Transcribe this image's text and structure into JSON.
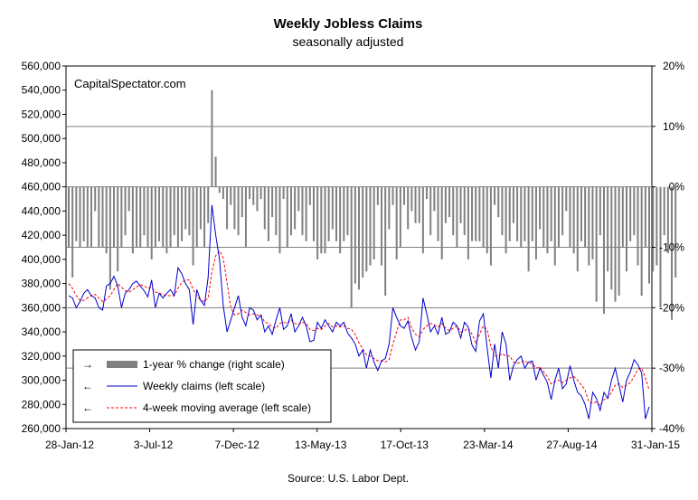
{
  "chart_data": {
    "type": "bar+line",
    "title": "Weekly Jobless Claims",
    "subtitle": "seasonally adjusted",
    "watermark": "CapitalSpectator.com",
    "source": "Source: U.S. Labor Dept.",
    "left_axis": {
      "ylim": [
        260000,
        560000
      ],
      "ticks": [
        "260,000",
        "280,000",
        "300,000",
        "320,000",
        "340,000",
        "360,000",
        "380,000",
        "400,000",
        "420,000",
        "440,000",
        "460,000",
        "480,000",
        "500,000",
        "520,000",
        "540,000",
        "560,000"
      ]
    },
    "right_axis": {
      "ylim": [
        -40,
        20
      ],
      "ticks": [
        "20%",
        "10%",
        "0%",
        "-10%",
        "-20%",
        "-30%",
        "-40%"
      ]
    },
    "x_axis": {
      "start": "28-Jan-12",
      "end": "31-Jan-15",
      "tick_labels": [
        "28-Jan-12",
        "3-Jul-12",
        "7-Dec-12",
        "13-May-13",
        "17-Oct-13",
        "23-Mar-14",
        "27-Aug-14",
        "31-Jan-15"
      ]
    },
    "grid": "horizontal at 10% steps of right scale",
    "legend": {
      "placement": "bottom-left",
      "entries": [
        {
          "label": "1-year % change (right scale)",
          "color": "#808080",
          "kind": "bar"
        },
        {
          "label": "Weekly claims (left scale)",
          "color": "#0000cc",
          "kind": "line"
        },
        {
          "label": "4-week moving average (left scale)",
          "color": "#ff0000",
          "kind": "dashed"
        }
      ]
    },
    "series": [
      {
        "name": "1-year % change (right scale)",
        "axis": "right",
        "color": "#808080",
        "values": [
          -10,
          -15,
          -9,
          -10,
          -9,
          -10,
          -10,
          -4,
          -10,
          -10,
          -11,
          -17,
          -10,
          -14,
          -10,
          -8,
          -4,
          -11,
          -10,
          -10,
          -8,
          -10,
          -12,
          -10,
          -9,
          -10,
          -11,
          -10,
          -8,
          -10,
          -9,
          -7,
          -8,
          -13,
          -10,
          -7,
          -10,
          -6,
          16,
          5,
          -1,
          -2,
          -7,
          -3,
          -7,
          -8,
          -5,
          -10,
          -2,
          -3,
          -4,
          -2,
          -7,
          -9,
          -5,
          -8,
          -11,
          -2,
          -10,
          -8,
          -7,
          -4,
          -8,
          -9,
          -3,
          -9,
          -12,
          -11,
          -11,
          -9,
          -7,
          -9,
          -11,
          -9,
          -8,
          -20,
          -16,
          -17,
          -15,
          -14,
          -13,
          -12,
          -3,
          -13,
          -18,
          -7,
          -3,
          -12,
          -10,
          -3,
          -7,
          -4,
          -6,
          -6,
          -11,
          -2,
          -8,
          -4,
          -9,
          -12,
          -6,
          -5,
          -8,
          -10,
          -6,
          -8,
          -12,
          -9,
          -9,
          -9,
          -10,
          -11,
          -13,
          -3,
          -5,
          -8,
          -11,
          -9,
          -6,
          -9,
          -10,
          -9,
          -14,
          -9,
          -12,
          -7,
          -10,
          -11,
          -9,
          -13,
          -10,
          -8,
          -4,
          -10,
          -11,
          -14,
          -9,
          -10,
          -13,
          -12,
          -19,
          -8,
          -21,
          -14,
          -17,
          -19,
          -18,
          -10,
          -14,
          -9,
          -8,
          -13,
          -18,
          -10,
          -16,
          -14,
          -13,
          -20,
          -8,
          -11,
          -22,
          -15
        ],
        "note": "right-scale values in percent (axis labels use % suffix)"
      },
      {
        "name": "Weekly claims (left scale)",
        "axis": "left",
        "color": "#0000cc",
        "values": [
          370000,
          368000,
          360000,
          365000,
          372000,
          375000,
          370000,
          368000,
          360000,
          358000,
          378000,
          380000,
          386000,
          378000,
          360000,
          372000,
          375000,
          380000,
          382000,
          378000,
          374000,
          369000,
          383000,
          360000,
          372000,
          368000,
          372000,
          375000,
          370000,
          393000,
          388000,
          380000,
          375000,
          346000,
          375000,
          366000,
          362000,
          385000,
          445000,
          420000,
          400000,
          362000,
          340000,
          350000,
          360000,
          370000,
          352000,
          345000,
          360000,
          358000,
          350000,
          354000,
          340000,
          345000,
          338000,
          350000,
          360000,
          342000,
          345000,
          355000,
          340000,
          345000,
          352000,
          345000,
          332000,
          333000,
          348000,
          343000,
          350000,
          345000,
          340000,
          348000,
          345000,
          348000,
          339000,
          335000,
          330000,
          320000,
          325000,
          310000,
          325000,
          315000,
          308000,
          316000,
          318000,
          330000,
          360000,
          352000,
          345000,
          343000,
          349000,
          335000,
          325000,
          332000,
          368000,
          355000,
          340000,
          345000,
          338000,
          352000,
          338000,
          340000,
          348000,
          345000,
          335000,
          348000,
          344000,
          329000,
          324000,
          349000,
          355000,
          327000,
          302000,
          330000,
          310000,
          340000,
          330000,
          300000,
          312000,
          317000,
          320000,
          310000,
          315000,
          316000,
          300000,
          310000,
          304000,
          298000,
          284000,
          300000,
          310000,
          293000,
          297000,
          312000,
          300000,
          290000,
          287000,
          280000,
          268000,
          290000,
          285000,
          275000,
          290000,
          285000,
          300000,
          310000,
          296000,
          282000,
          300000,
          307000,
          317000,
          313000,
          306000,
          268000,
          278000
        ],
        "note": "weekly initial claims"
      },
      {
        "name": "4-week moving average (left scale)",
        "axis": "left",
        "color": "#ff0000",
        "values": [
          380000,
          376000,
          370000,
          366000,
          366000,
          368000,
          370000,
          371000,
          368000,
          365000,
          367000,
          370000,
          375000,
          380000,
          377000,
          374000,
          373000,
          375000,
          377000,
          379000,
          378000,
          376000,
          377000,
          373000,
          372000,
          371000,
          370000,
          370000,
          370000,
          376000,
          381000,
          383000,
          383000,
          375000,
          370000,
          366000,
          365000,
          368000,
          390000,
          403000,
          407000,
          401000,
          381000,
          360000,
          354000,
          355000,
          358000,
          356000,
          354000,
          355000,
          354000,
          354000,
          348000,
          347000,
          344000,
          343000,
          347000,
          348000,
          347000,
          350000,
          347000,
          346000,
          348000,
          347000,
          342000,
          341000,
          343000,
          342000,
          345000,
          347000,
          344000,
          345000,
          344000,
          345000,
          343000,
          342000,
          338000,
          331000,
          326000,
          321000,
          320000,
          318000,
          316000,
          316000,
          315000,
          317000,
          330000,
          340000,
          350000,
          350000,
          352000,
          343000,
          338000,
          336000,
          342000,
          345000,
          347000,
          346000,
          344000,
          347000,
          343000,
          341000,
          343000,
          345000,
          340000,
          341000,
          343000,
          338000,
          331000,
          338000,
          345000,
          342000,
          328000,
          320000,
          320000,
          322000,
          320000,
          320000,
          315000,
          314000,
          315000,
          316000,
          314000,
          314000,
          310000,
          311000,
          307000,
          303000,
          297000,
          299000,
          300000,
          298000,
          300000,
          302000,
          303000,
          300000,
          296000,
          292000,
          282000,
          281000,
          282000,
          279000,
          284000,
          285000,
          290000,
          296000,
          297000,
          294000,
          296000,
          298000,
          303000,
          309000,
          310000,
          302000,
          292000
        ]
      }
    ]
  }
}
